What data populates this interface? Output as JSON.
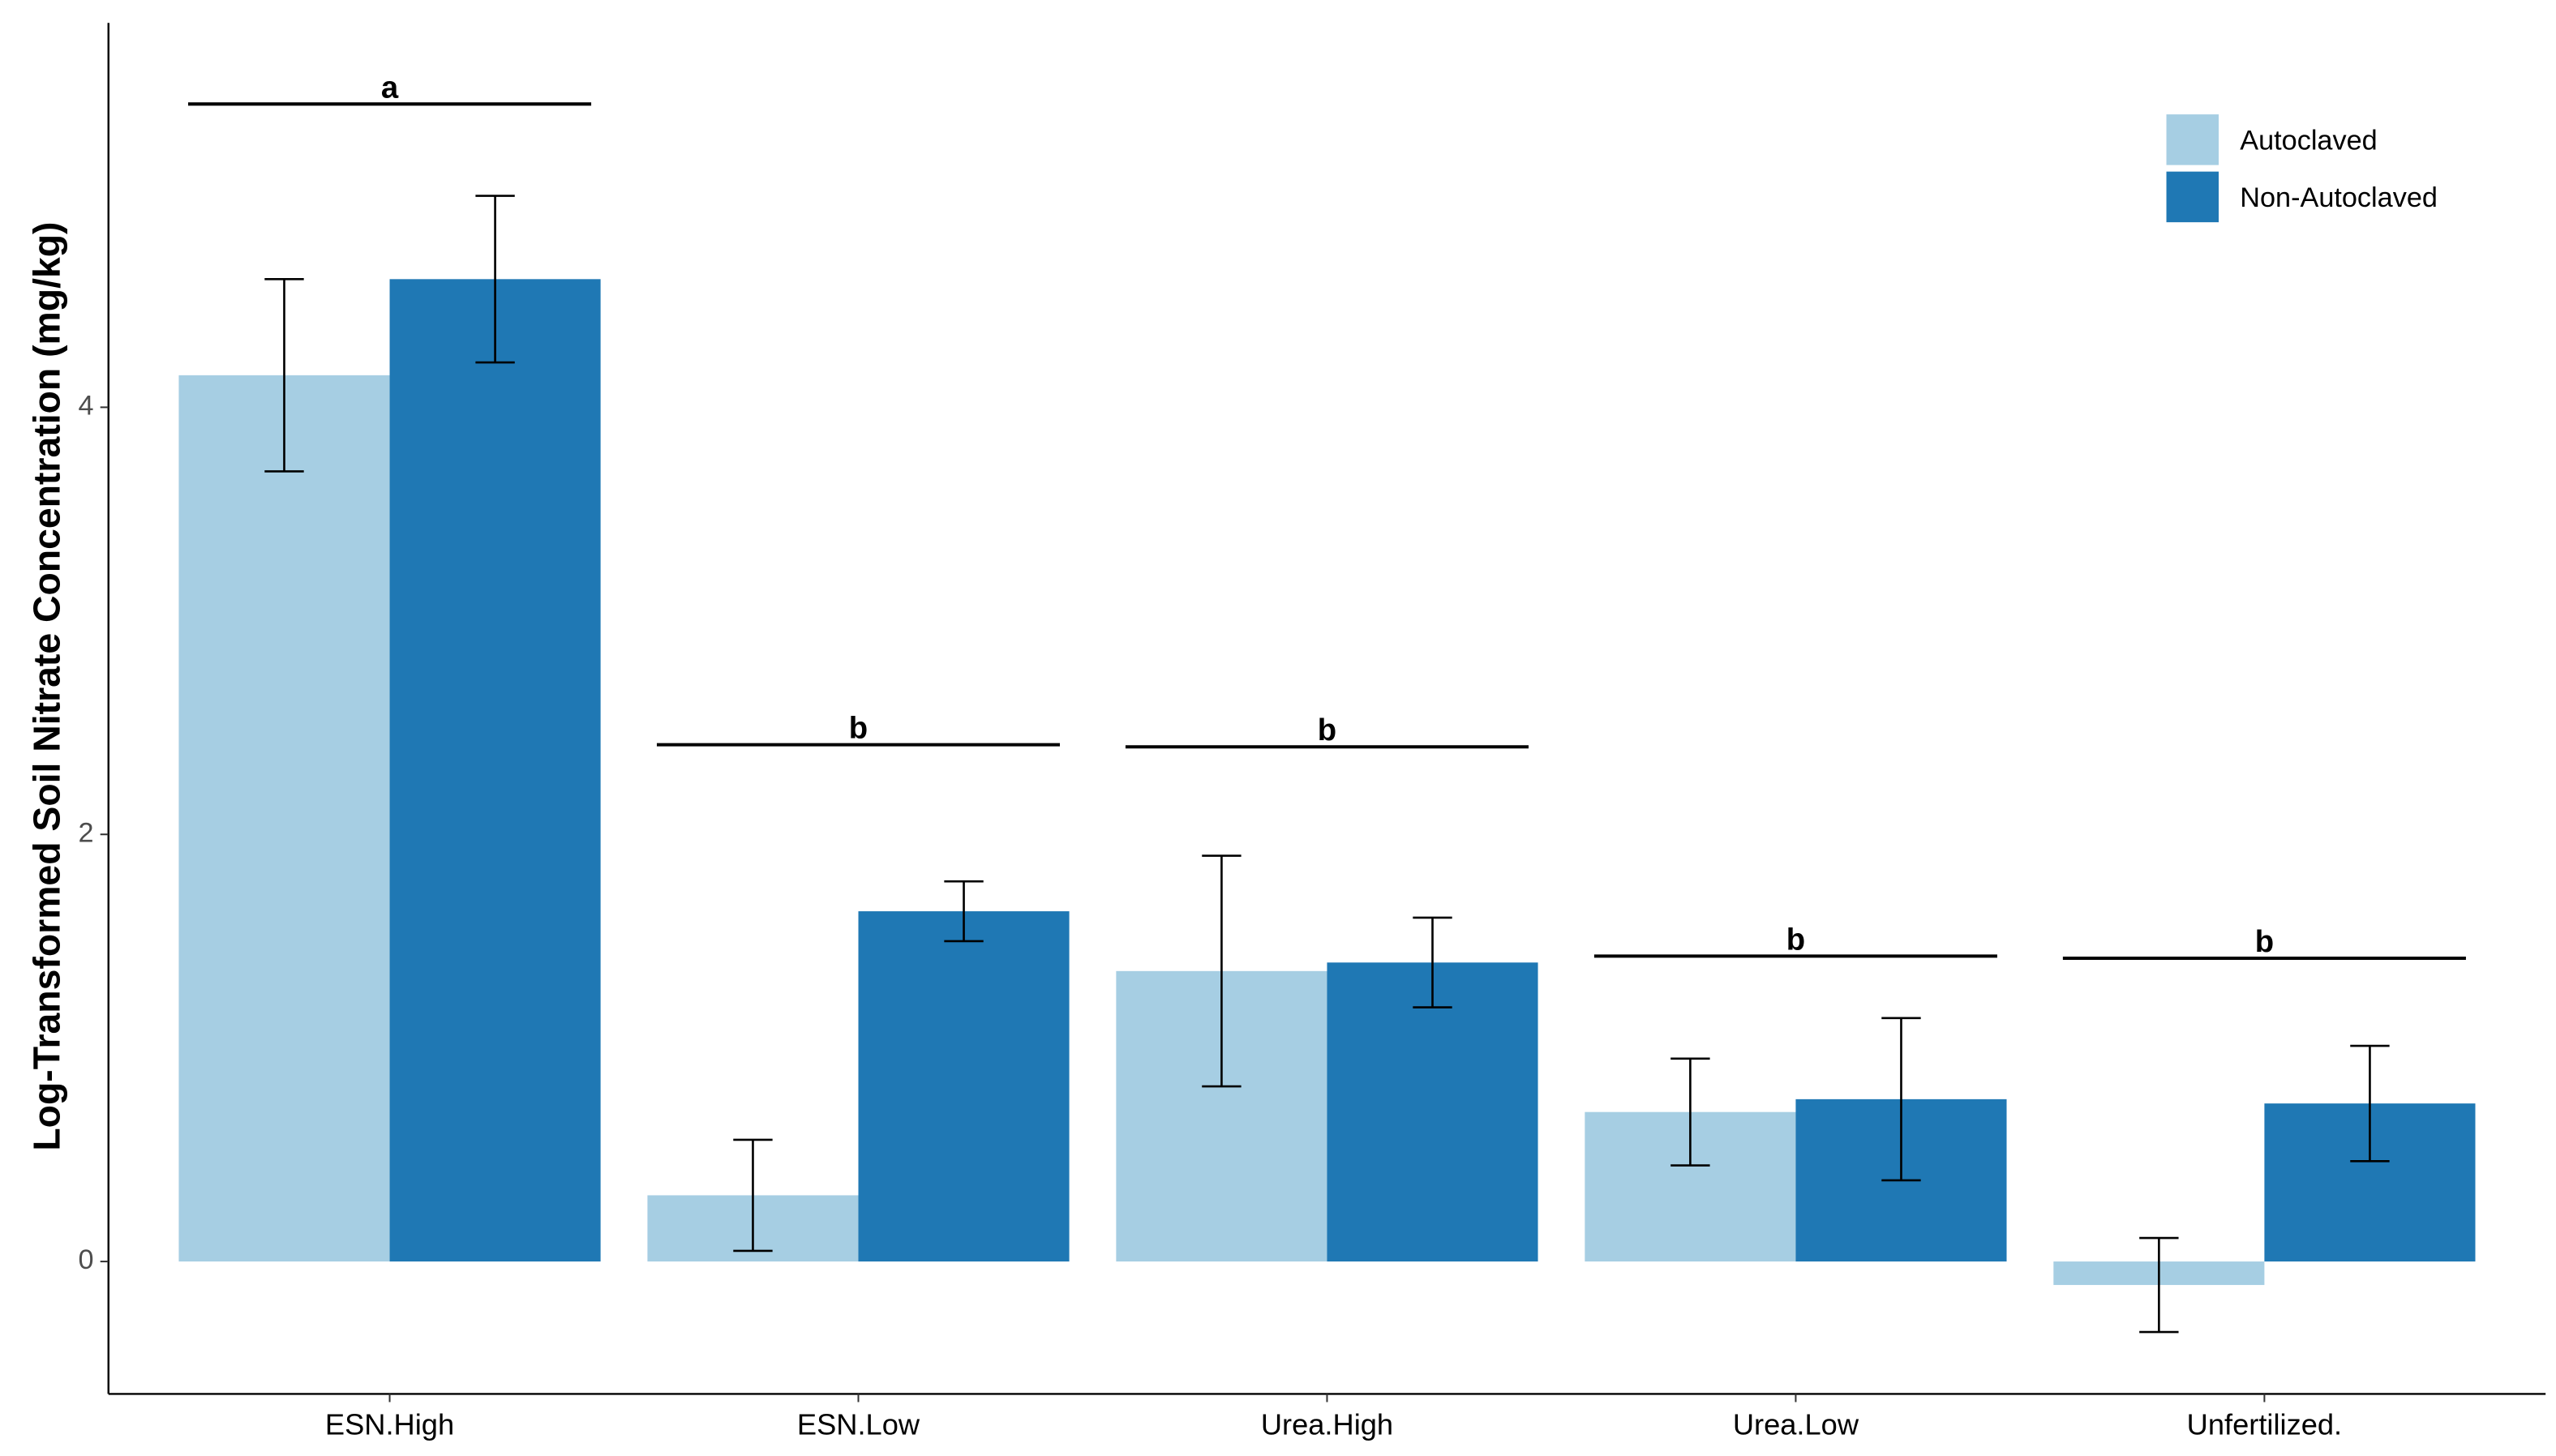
{
  "chart_data": {
    "type": "bar",
    "y_label": "Log-Transformed Soil Nitrate Concentration (mg/kg)",
    "categories": [
      "ESN.High",
      "ESN.Low",
      "Urea.High",
      "Urea.Low",
      "Unfertilized."
    ],
    "series": [
      {
        "name": "Autoclaved",
        "color": "#a6cee3",
        "values": [
          4.15,
          0.31,
          1.36,
          0.7,
          -0.11
        ],
        "errors": [
          0.45,
          0.26,
          0.54,
          0.25,
          0.22
        ]
      },
      {
        "name": "Non-Autoclaved",
        "color": "#1f78b4",
        "values": [
          4.6,
          1.64,
          1.4,
          0.76,
          0.74
        ],
        "errors": [
          0.39,
          0.14,
          0.21,
          0.38,
          0.27
        ]
      }
    ],
    "letters": [
      {
        "text": "a",
        "y": 5.42
      },
      {
        "text": "b",
        "y": 2.42
      },
      {
        "text": "b",
        "y": 2.41
      },
      {
        "text": "b",
        "y": 1.43
      },
      {
        "text": "b",
        "y": 1.42
      }
    ],
    "ylim": [
      -0.62,
      5.8
    ],
    "yticks": [
      0,
      2,
      4
    ],
    "grid": false,
    "legend": "top-right"
  }
}
